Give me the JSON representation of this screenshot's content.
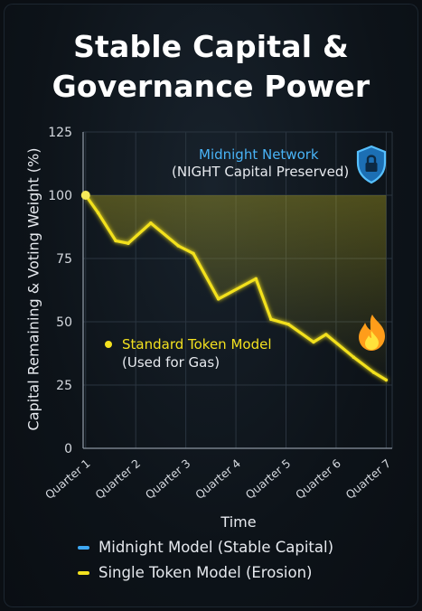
{
  "title_lines": [
    "Stable Capital &",
    "Governance Power"
  ],
  "colors": {
    "blue": "#3ea8f2",
    "yellow": "#f3e11f",
    "flame": "#ffcf1f"
  },
  "legend": [
    "Midnight Model (Stable Capital)",
    "Single Token Model (Erosion)"
  ],
  "annotations": {
    "blue_title": "Midnight Network",
    "blue_sub": "(NIGHT Capital Preserved)",
    "yellow_title": "Standard Token Model",
    "yellow_sub": "(Used for Gas)",
    "icons": [
      "shield-lock-icon",
      "flame-icon"
    ]
  },
  "chart_data": {
    "type": "line",
    "xlabel": "Time",
    "ylabel": "Capital Remaining & Voting Weight (%)",
    "categories": [
      "Quarter 1",
      "Quarter 2",
      "Quarter 3",
      "Quarter 4",
      "Quarter 5",
      "Quarter 6",
      "Quarter 7"
    ],
    "ylim": [
      0,
      125
    ],
    "yticks": [
      0,
      25,
      50,
      75,
      100,
      125
    ],
    "grid": true,
    "legend_position": "bottom",
    "series": [
      {
        "name": "Midnight Model (Stable Capital)",
        "x": [
          1,
          7
        ],
        "values": [
          100,
          100
        ]
      },
      {
        "name": "Single Token Model (Erosion)",
        "x": [
          1,
          1.25,
          1.6,
          1.85,
          2.3,
          2.85,
          3.15,
          3.65,
          4.4,
          4.7,
          5.05,
          5.55,
          5.8,
          6.35,
          6.75,
          7
        ],
        "values": [
          100,
          93,
          82,
          81,
          89,
          80,
          77,
          59,
          67,
          51,
          49,
          42,
          45,
          36,
          30,
          27
        ]
      }
    ]
  }
}
